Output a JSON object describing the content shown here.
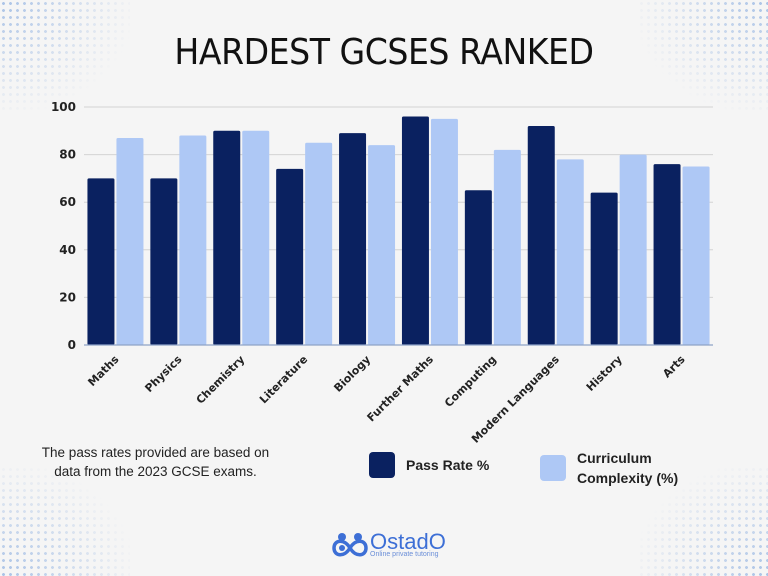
{
  "header": {
    "title": "HARDEST GCSES RANKED"
  },
  "footer": {
    "note": "The pass rates provided are based on data from the 2023 GCSE exams.",
    "logo_name": "OstadO",
    "logo_tagline": "Online private tutoring"
  },
  "colors": {
    "pass_rate": "#0a2160",
    "complexity": "#aec8f5",
    "gridline": "#d4d4d4",
    "background": "#f5f5f5"
  },
  "chart_data": {
    "type": "bar",
    "title": "HARDEST GCSES RANKED",
    "xlabel": "",
    "ylabel": "",
    "ylim": [
      0,
      100
    ],
    "yticks": [
      0,
      20,
      40,
      60,
      80,
      100
    ],
    "grid": true,
    "legend_position": "bottom",
    "categories": [
      "Maths",
      "Physics",
      "Chemistry",
      "Literature",
      "Biology",
      "Further Maths",
      "Computing",
      "Modern Languages",
      "History",
      "Arts"
    ],
    "series": [
      {
        "name": "Pass Rate %",
        "color": "#0a2160",
        "values": [
          70,
          70,
          90,
          74,
          89,
          96,
          65,
          92,
          64,
          76
        ]
      },
      {
        "name": "Curriculum Complexity (%)",
        "color": "#aec8f5",
        "values": [
          87,
          88,
          90,
          85,
          84,
          95,
          82,
          78,
          80,
          75
        ]
      }
    ]
  },
  "legend": {
    "items": [
      {
        "label": "Pass Rate %",
        "color": "#0a2160"
      },
      {
        "label_line1": "Curriculum",
        "label_line2": "Complexity (%)",
        "color": "#aec8f5"
      }
    ]
  }
}
